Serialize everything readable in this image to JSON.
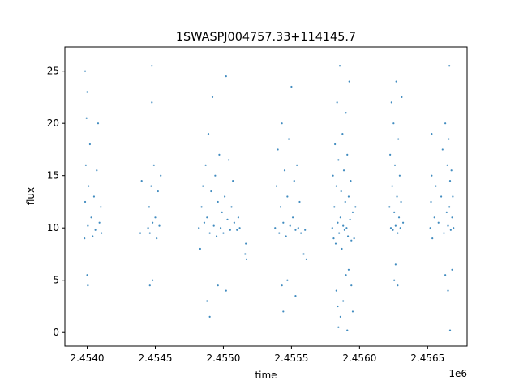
{
  "chart_data": {
    "type": "scatter",
    "title": "1SWASPJ004757.33+114145.7",
    "xlabel": "time",
    "ylabel": "flux",
    "x_offset_label": "1e6",
    "xlim": [
      2453836,
      2456790
    ],
    "ylim": [
      -1.3,
      27.3
    ],
    "xticks": [
      2454000,
      2454500,
      2455000,
      2455500,
      2456000,
      2456500
    ],
    "xtick_labels": [
      "2.4540",
      "2.4545",
      "2.4550",
      "2.4555",
      "2.4560",
      "2.4565"
    ],
    "yticks": [
      0,
      5,
      10,
      15,
      20,
      25
    ],
    "ytick_labels": [
      "0",
      "5",
      "10",
      "15",
      "20",
      "25"
    ],
    "grid": false,
    "legend": "none",
    "point_color": "#1f77b4",
    "series": [
      {
        "points": [
          [
            2453980,
            9.0
          ],
          [
            2453985,
            12.5
          ],
          [
            2453990,
            16.0
          ],
          [
            2453995,
            20.5
          ],
          [
            2454000,
            23.0
          ],
          [
            2454005,
            10.2
          ],
          [
            2454010,
            14.0
          ],
          [
            2454020,
            18.0
          ],
          [
            2454030,
            11.0
          ],
          [
            2454040,
            9.2
          ],
          [
            2454050,
            13.0
          ],
          [
            2454060,
            9.8
          ],
          [
            2454070,
            15.5
          ],
          [
            2454080,
            20.0
          ],
          [
            2454090,
            10.5
          ],
          [
            2454100,
            12.0
          ],
          [
            2454105,
            9.5
          ],
          [
            2454000,
            5.5
          ],
          [
            2454005,
            4.5
          ],
          [
            2453985,
            25.0
          ],
          [
            2454447,
            10.0
          ],
          [
            2454455,
            12.0
          ],
          [
            2454460,
            9.5
          ],
          [
            2454470,
            14.0
          ],
          [
            2454475,
            22.0
          ],
          [
            2454480,
            10.5
          ],
          [
            2454490,
            16.0
          ],
          [
            2454500,
            11.0
          ],
          [
            2454510,
            9.0
          ],
          [
            2454520,
            13.5
          ],
          [
            2454530,
            10.2
          ],
          [
            2454540,
            15.0
          ],
          [
            2454480,
            5.0
          ],
          [
            2454460,
            4.5
          ],
          [
            2454475,
            25.5
          ],
          [
            2454390,
            9.5
          ],
          [
            2454400,
            14.5
          ],
          [
            2454820,
            10.0
          ],
          [
            2454830,
            8.0
          ],
          [
            2454840,
            12.0
          ],
          [
            2454850,
            14.0
          ],
          [
            2454860,
            10.5
          ],
          [
            2454870,
            16.0
          ],
          [
            2454880,
            11.0
          ],
          [
            2454890,
            19.0
          ],
          [
            2454900,
            9.5
          ],
          [
            2454910,
            13.5
          ],
          [
            2454920,
            22.5
          ],
          [
            2454930,
            10.2
          ],
          [
            2454940,
            15.0
          ],
          [
            2454950,
            9.2
          ],
          [
            2454960,
            12.5
          ],
          [
            2454970,
            17.0
          ],
          [
            2454980,
            10.0
          ],
          [
            2454990,
            11.5
          ],
          [
            2455000,
            9.5
          ],
          [
            2455010,
            13.0
          ],
          [
            2455020,
            24.5
          ],
          [
            2455030,
            10.8
          ],
          [
            2455040,
            16.5
          ],
          [
            2455050,
            9.8
          ],
          [
            2455060,
            12.0
          ],
          [
            2455070,
            14.5
          ],
          [
            2455080,
            10.5
          ],
          [
            2455100,
            9.8
          ],
          [
            2455110,
            11.0
          ],
          [
            2455120,
            10.0
          ],
          [
            2455160,
            7.5
          ],
          [
            2455165,
            8.5
          ],
          [
            2455170,
            7.0
          ],
          [
            2454880,
            3.0
          ],
          [
            2454900,
            1.5
          ],
          [
            2454960,
            4.5
          ],
          [
            2455020,
            4.0
          ],
          [
            2455380,
            10.0
          ],
          [
            2455390,
            14.0
          ],
          [
            2455400,
            17.5
          ],
          [
            2455410,
            9.5
          ],
          [
            2455420,
            12.0
          ],
          [
            2455430,
            20.0
          ],
          [
            2455440,
            10.5
          ],
          [
            2455450,
            15.5
          ],
          [
            2455460,
            9.2
          ],
          [
            2455470,
            13.0
          ],
          [
            2455480,
            18.5
          ],
          [
            2455490,
            10.2
          ],
          [
            2455500,
            23.5
          ],
          [
            2455510,
            11.0
          ],
          [
            2455520,
            14.5
          ],
          [
            2455530,
            9.8
          ],
          [
            2455540,
            16.0
          ],
          [
            2455550,
            10.0
          ],
          [
            2455560,
            12.5
          ],
          [
            2455570,
            9.5
          ],
          [
            2455590,
            7.5
          ],
          [
            2455600,
            9.8
          ],
          [
            2455610,
            7.0
          ],
          [
            2455430,
            4.5
          ],
          [
            2455440,
            2.0
          ],
          [
            2455470,
            5.0
          ],
          [
            2455530,
            3.5
          ],
          [
            2455800,
            10.0
          ],
          [
            2455805,
            15.0
          ],
          [
            2455810,
            9.0
          ],
          [
            2455815,
            12.0
          ],
          [
            2455820,
            18.0
          ],
          [
            2455825,
            8.5
          ],
          [
            2455830,
            14.0
          ],
          [
            2455835,
            22.0
          ],
          [
            2455840,
            10.5
          ],
          [
            2455845,
            16.5
          ],
          [
            2455850,
            9.5
          ],
          [
            2455855,
            25.5
          ],
          [
            2455860,
            11.0
          ],
          [
            2455865,
            13.5
          ],
          [
            2455870,
            8.0
          ],
          [
            2455875,
            19.0
          ],
          [
            2455880,
            10.2
          ],
          [
            2455885,
            15.5
          ],
          [
            2455890,
            9.8
          ],
          [
            2455895,
            12.5
          ],
          [
            2455900,
            21.0
          ],
          [
            2455905,
            10.0
          ],
          [
            2455910,
            17.0
          ],
          [
            2455915,
            9.2
          ],
          [
            2455920,
            13.0
          ],
          [
            2455925,
            24.0
          ],
          [
            2455930,
            10.8
          ],
          [
            2455935,
            14.5
          ],
          [
            2455940,
            8.8
          ],
          [
            2455950,
            11.5
          ],
          [
            2455960,
            9.0
          ],
          [
            2455970,
            12.0
          ],
          [
            2455830,
            4.0
          ],
          [
            2455840,
            2.5
          ],
          [
            2455845,
            0.5
          ],
          [
            2455860,
            1.5
          ],
          [
            2455880,
            3.0
          ],
          [
            2455900,
            5.5
          ],
          [
            2455910,
            0.2
          ],
          [
            2455920,
            6.0
          ],
          [
            2455940,
            4.5
          ],
          [
            2455950,
            2.0
          ],
          [
            2456220,
            12.0
          ],
          [
            2456225,
            17.0
          ],
          [
            2456230,
            10.0
          ],
          [
            2456235,
            22.0
          ],
          [
            2456240,
            14.0
          ],
          [
            2456245,
            9.8
          ],
          [
            2456250,
            20.0
          ],
          [
            2456255,
            11.5
          ],
          [
            2456260,
            16.0
          ],
          [
            2456265,
            10.2
          ],
          [
            2456270,
            24.0
          ],
          [
            2456275,
            13.0
          ],
          [
            2456280,
            9.5
          ],
          [
            2456285,
            18.5
          ],
          [
            2456290,
            11.0
          ],
          [
            2456295,
            15.0
          ],
          [
            2456300,
            10.0
          ],
          [
            2456305,
            12.5
          ],
          [
            2456310,
            22.5
          ],
          [
            2456320,
            10.5
          ],
          [
            2456255,
            5.0
          ],
          [
            2456265,
            6.5
          ],
          [
            2456280,
            4.5
          ],
          [
            2456520,
            10.0
          ],
          [
            2456525,
            12.5
          ],
          [
            2456530,
            15.0
          ],
          [
            2456535,
            9.0
          ],
          [
            2456550,
            11.0
          ],
          [
            2456560,
            14.0
          ],
          [
            2456580,
            10.5
          ],
          [
            2456600,
            13.0
          ],
          [
            2456610,
            17.5
          ],
          [
            2456620,
            9.5
          ],
          [
            2456630,
            20.0
          ],
          [
            2456640,
            11.5
          ],
          [
            2456645,
            16.0
          ],
          [
            2456650,
            10.2
          ],
          [
            2456655,
            18.5
          ],
          [
            2456660,
            12.0
          ],
          [
            2456665,
            14.5
          ],
          [
            2456670,
            9.8
          ],
          [
            2456675,
            15.5
          ],
          [
            2456680,
            11.0
          ],
          [
            2456685,
            13.0
          ],
          [
            2456690,
            10.0
          ],
          [
            2456630,
            5.5
          ],
          [
            2456650,
            4.0
          ],
          [
            2456665,
            0.2
          ],
          [
            2456680,
            6.0
          ],
          [
            2456660,
            25.5
          ],
          [
            2456530,
            19.0
          ]
        ]
      }
    ]
  }
}
